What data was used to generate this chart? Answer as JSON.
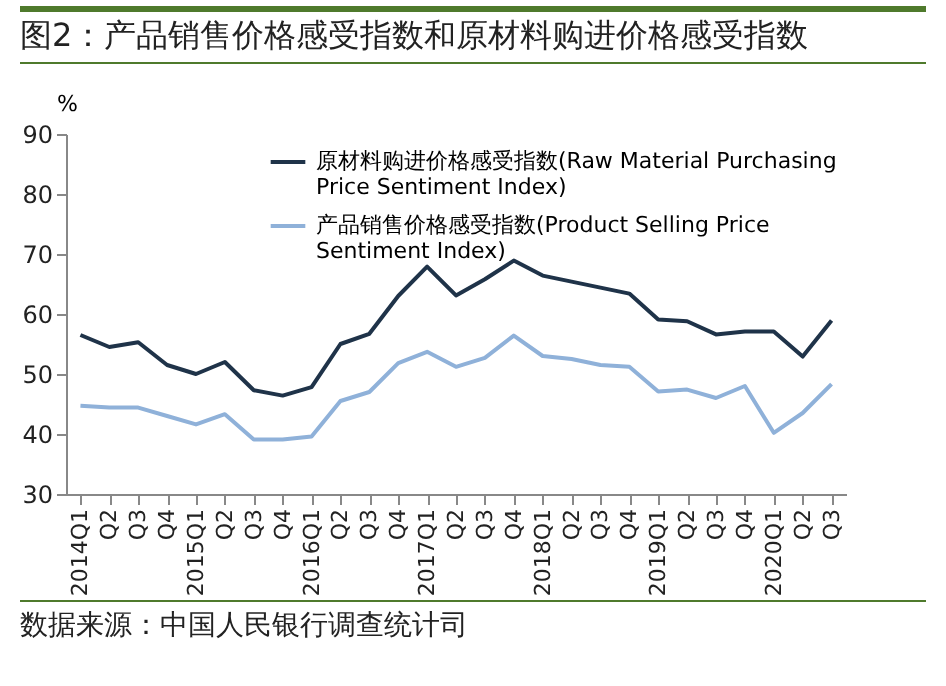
{
  "chart_data": {
    "type": "line",
    "title": "图2：产品销售价格感受指数和原材料购进价格感受指数",
    "ylabel": "%",
    "annotations": [
      "数据来源：中国人民银行调查统计司"
    ],
    "categories": [
      "2014Q1",
      "Q2",
      "Q3",
      "Q4",
      "2015Q1",
      "Q2",
      "Q3",
      "Q4",
      "2016Q1",
      "Q2",
      "Q3",
      "Q4",
      "2017Q1",
      "Q2",
      "Q3",
      "Q4",
      "2018Q1",
      "Q2",
      "Q3",
      "Q4",
      "2019Q1",
      "Q2",
      "Q3",
      "Q4",
      "2020Q1",
      "Q2",
      "Q3"
    ],
    "series": [
      {
        "name": "原材料购进价格感受指数(Raw Material Purchasing Price Sentiment Index)",
        "color": "#1f3349",
        "values": [
          56.5,
          54.5,
          55.3,
          51.5,
          50,
          52,
          47.3,
          46.4,
          47.8,
          55,
          56.7,
          63,
          67.9,
          63.1,
          65.8,
          68.9,
          66.4,
          65.4,
          64.4,
          63.4,
          59.1,
          58.8,
          56.6,
          57.1,
          57.1,
          52.9,
          58.9
        ]
      },
      {
        "name": "产品销售价格感受指数(Product Selling Price Sentiment Index)",
        "color": "#8fb1d9",
        "values": [
          44.7,
          44.4,
          44.4,
          43,
          41.6,
          43.3,
          39.1,
          39.1,
          39.6,
          45.5,
          47,
          51.8,
          53.7,
          51.2,
          52.7,
          56.4,
          53,
          52.5,
          51.5,
          51.2,
          47.1,
          47.4,
          46,
          48,
          40.2,
          43.5,
          48.3
        ]
      }
    ],
    "ylim": [
      30,
      90
    ],
    "yticks": [
      30,
      40,
      50,
      60,
      70,
      80,
      90
    ],
    "grid": false,
    "legend": "top right",
    "marker": "none",
    "line_style": "solid"
  }
}
